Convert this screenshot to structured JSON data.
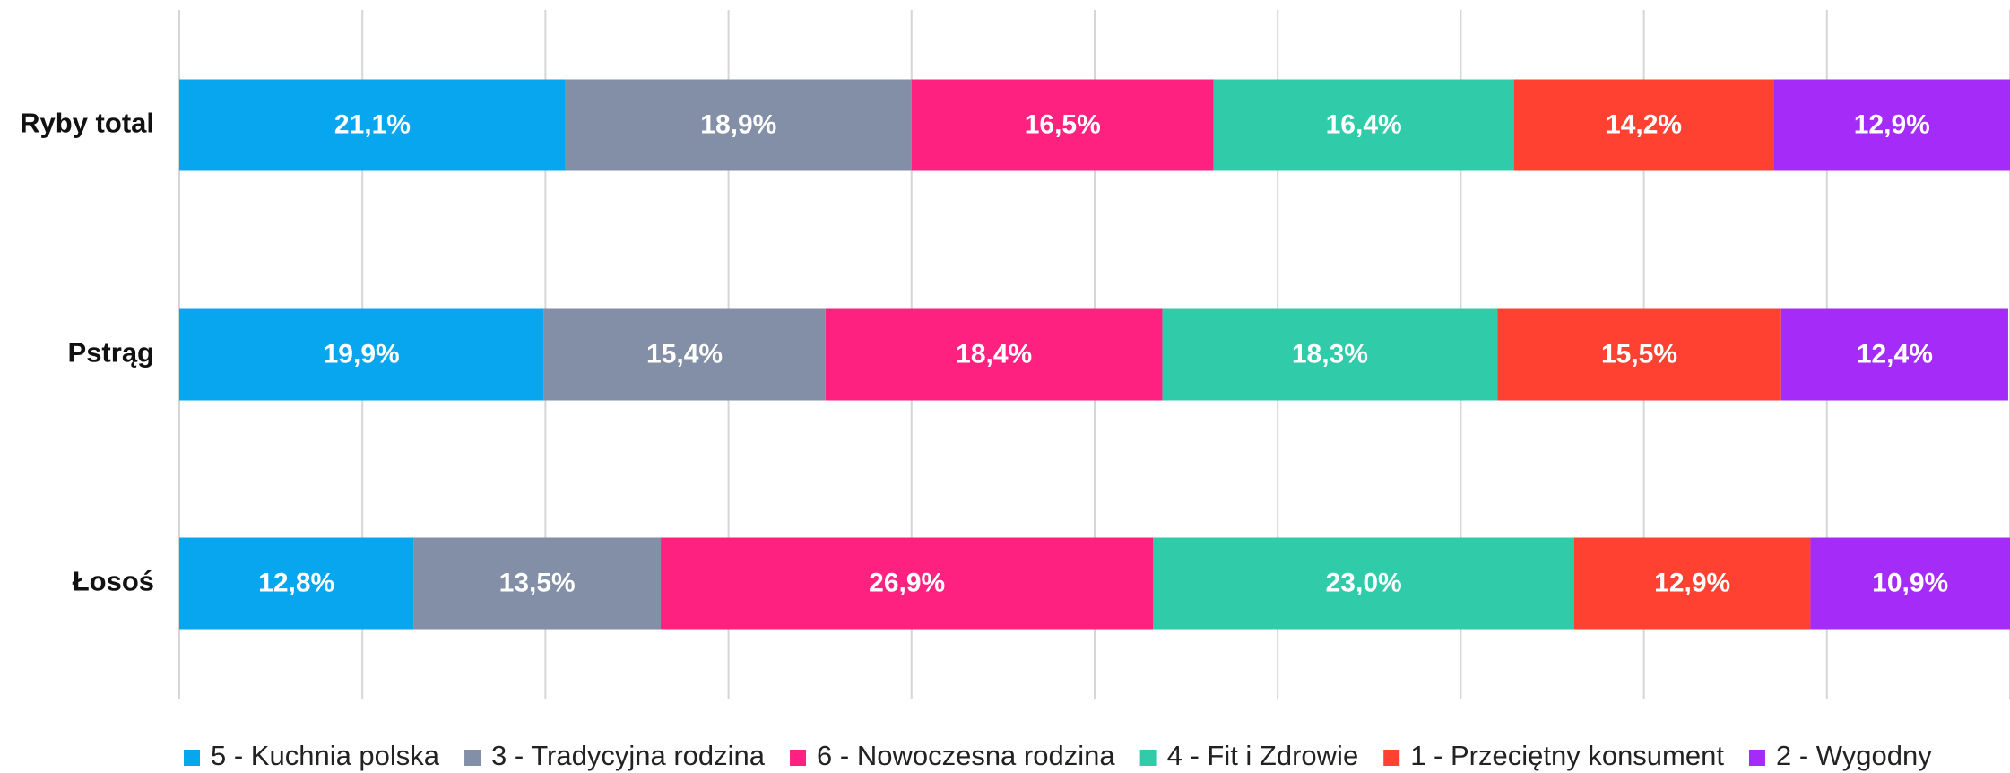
{
  "chart_data": {
    "type": "stacked-bar-horizontal",
    "categories": [
      "Ryby total",
      "Pstrąg",
      "Łosoś"
    ],
    "series": [
      {
        "name": "5 - Kuchnia polska",
        "color": "#08a6ef",
        "values": [
          21.1,
          19.9,
          12.8
        ],
        "value_labels": [
          "21,1%",
          "19,9%",
          "12,8%"
        ]
      },
      {
        "name": "3 - Tradycyjna rodzina",
        "color": "#838fa6",
        "values": [
          18.9,
          15.4,
          13.5
        ],
        "value_labels": [
          "18,9%",
          "15,4%",
          "13,5%"
        ]
      },
      {
        "name": "6 - Nowoczesna rodzina",
        "color": "#fe2180",
        "values": [
          16.5,
          18.4,
          26.9
        ],
        "value_labels": [
          "16,5%",
          "18,4%",
          "26,9%"
        ]
      },
      {
        "name": "4 - Fit i Zdrowie",
        "color": "#30cba9",
        "values": [
          16.4,
          18.3,
          23.0
        ],
        "value_labels": [
          "16,4%",
          "18,3%",
          "23,0%"
        ]
      },
      {
        "name": "1 - Przeciętny konsument",
        "color": "#fe4130",
        "values": [
          14.2,
          15.5,
          12.9
        ],
        "value_labels": [
          "14,2%",
          "15,5%",
          "12,9%"
        ]
      },
      {
        "name": "2 - Wygodny",
        "color": "#a42bf8",
        "values": [
          12.9,
          12.4,
          10.9
        ],
        "value_labels": [
          "12,9%",
          "12,4%",
          "10,9%"
        ]
      }
    ],
    "xlim": [
      0,
      100
    ],
    "xticks": [
      0,
      10,
      20,
      30,
      40,
      50,
      60,
      70,
      80,
      90,
      100
    ],
    "grid": true
  }
}
